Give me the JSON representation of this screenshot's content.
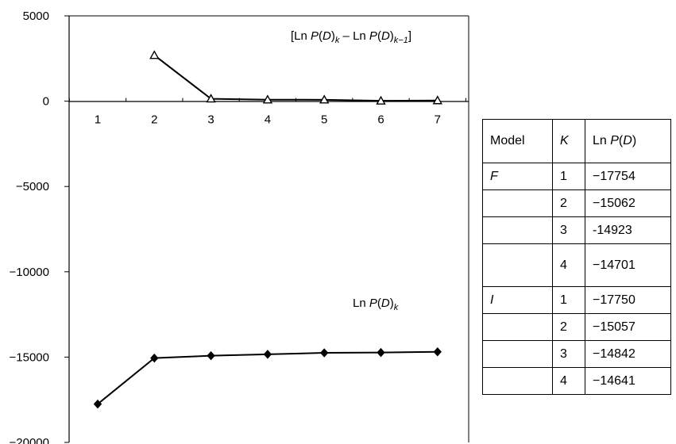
{
  "chart_data": [
    {
      "type": "line",
      "x": [
        1,
        2,
        3,
        4,
        5,
        6,
        7
      ],
      "xticks": [
        "1",
        "2",
        "3",
        "4",
        "5",
        "6",
        "7"
      ],
      "ylim": [
        -20000,
        5000
      ],
      "yticks": [
        "5000",
        "0",
        "−5000",
        "−10000",
        "−15000",
        "−20000"
      ],
      "series": [
        {
          "name": "[Ln P(D)k – Ln P(D)k−1]",
          "marker": "open-triangle",
          "values": [
            null,
            2692,
            139,
            85,
            83,
            20,
            40
          ]
        },
        {
          "name": "Ln P(D)k",
          "marker": "filled-diamond",
          "values": [
            -17750,
            -15058,
            -14919,
            -14834,
            -14751,
            -14731,
            -14691
          ]
        }
      ]
    },
    {
      "type": "table",
      "headers": [
        "Model",
        "K",
        "Ln P(D)"
      ],
      "rows": [
        [
          "F",
          "1",
          "−17754"
        ],
        [
          "",
          "2",
          "−15062"
        ],
        [
          "",
          "3",
          "-14923"
        ],
        [
          "",
          "4",
          "−14701"
        ],
        [
          "I",
          "1",
          "−17750"
        ],
        [
          "",
          "2",
          "−15057"
        ],
        [
          "",
          "3",
          "−14842"
        ],
        [
          "",
          "4",
          "−14641"
        ]
      ]
    }
  ],
  "labels": {
    "diff_label": {
      "open": "[Ln ",
      "p1": "P",
      "m1": "(",
      "d1": "D",
      "c1": ")",
      "s1": "k",
      "mid": " – Ln ",
      "p2": "P",
      "m2": "(",
      "d2": "D",
      "c2": ")",
      "s2": "k−1",
      "close": "]"
    },
    "lnp_label": {
      "pre": "Ln ",
      "p": "P",
      "m": "(",
      "d": "D",
      "c": ")",
      "s": "k"
    }
  },
  "table_header": {
    "model": "Model",
    "k": "K",
    "lnp_pre": "Ln ",
    "lnp_p": "P",
    "lnp_m": "(",
    "lnp_d": "D",
    "lnp_c": ")"
  }
}
